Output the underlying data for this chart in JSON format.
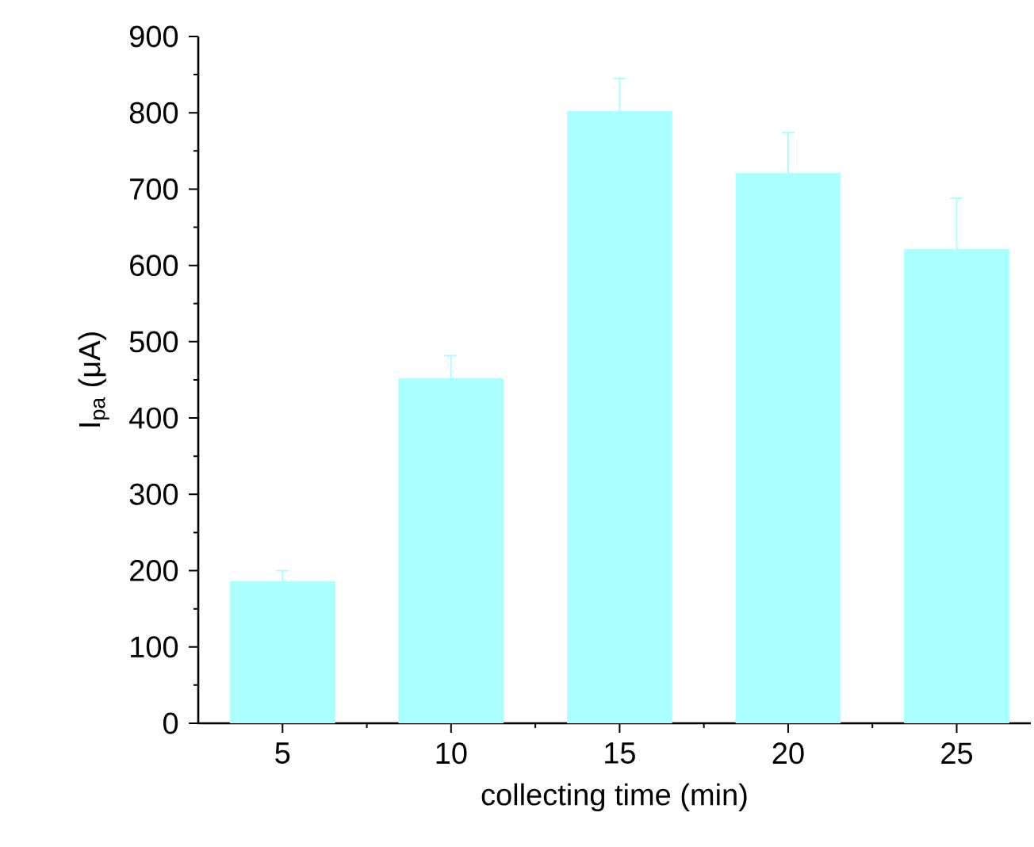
{
  "chart_data": {
    "type": "bar",
    "xlabel": "collecting time (min)",
    "ylabel": "I$_{pa}$ (μA)",
    "categories": [
      "5",
      "10",
      "15",
      "20",
      "25"
    ],
    "values": [
      186,
      452,
      802,
      721,
      621
    ],
    "errors": [
      14,
      30,
      43,
      53,
      67
    ],
    "color": "#aaffff",
    "ylim": [
      0,
      900
    ],
    "yticks": [
      0,
      100,
      200,
      300,
      400,
      500,
      600,
      700,
      800,
      900
    ]
  }
}
